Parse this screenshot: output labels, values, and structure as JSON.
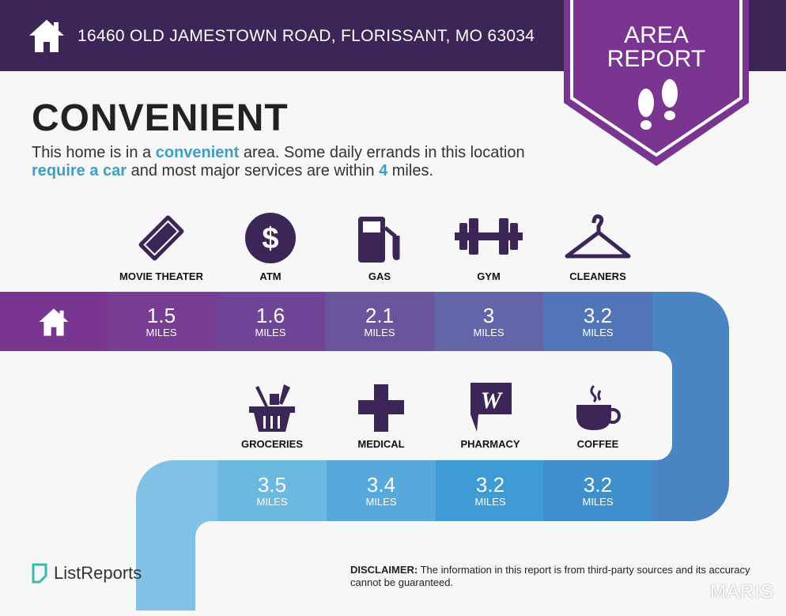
{
  "header": {
    "address": "16460 OLD JAMESTOWN ROAD, FLORISSANT, MO 63034",
    "home_icon": "house-icon"
  },
  "badge": {
    "line1": "AREA",
    "line2": "REPORT",
    "icon": "footprints-icon"
  },
  "rating": {
    "title": "CONVENIENT",
    "desc_1": "This home is in a ",
    "desc_hl1": "convenient",
    "desc_2": " area. Some daily errands in this location ",
    "desc_hl2": "require a car",
    "desc_3": " and most major services are within ",
    "desc_hl3": "4",
    "desc_4": " miles."
  },
  "unit": "MILES",
  "top_row": [
    {
      "label": "MOVIE THEATER",
      "distance": "1.5",
      "icon": "ticket-icon",
      "color": "#773d93"
    },
    {
      "label": "ATM",
      "distance": "1.6",
      "icon": "dollar-icon",
      "color": "#704497"
    },
    {
      "label": "GAS",
      "distance": "2.1",
      "icon": "gas-pump-icon",
      "color": "#6a559d"
    },
    {
      "label": "GYM",
      "distance": "3",
      "icon": "dumbbell-icon",
      "color": "#6265a8"
    },
    {
      "label": "CLEANERS",
      "distance": "3.2",
      "icon": "hanger-icon",
      "color": "#5175b7"
    }
  ],
  "bottom_row": [
    {
      "label": "GROCERIES",
      "distance": "3.5",
      "icon": "basket-icon",
      "color": "#6bb8e0"
    },
    {
      "label": "MEDICAL",
      "distance": "3.4",
      "icon": "medical-cross-icon",
      "color": "#56a9da"
    },
    {
      "label": "PHARMACY",
      "distance": "3.2",
      "icon": "pharmacy-icon",
      "color": "#3f9bd3"
    },
    {
      "label": "COFFEE",
      "distance": "3.2",
      "icon": "coffee-icon",
      "color": "#3f8fcc"
    }
  ],
  "footer": {
    "logo": "ListReports",
    "disclaimer_label": "DISCLAIMER:",
    "disclaimer": " The information in this report is from third-party sources and its accuracy cannot be guaranteed.",
    "watermark": "MARIS"
  }
}
